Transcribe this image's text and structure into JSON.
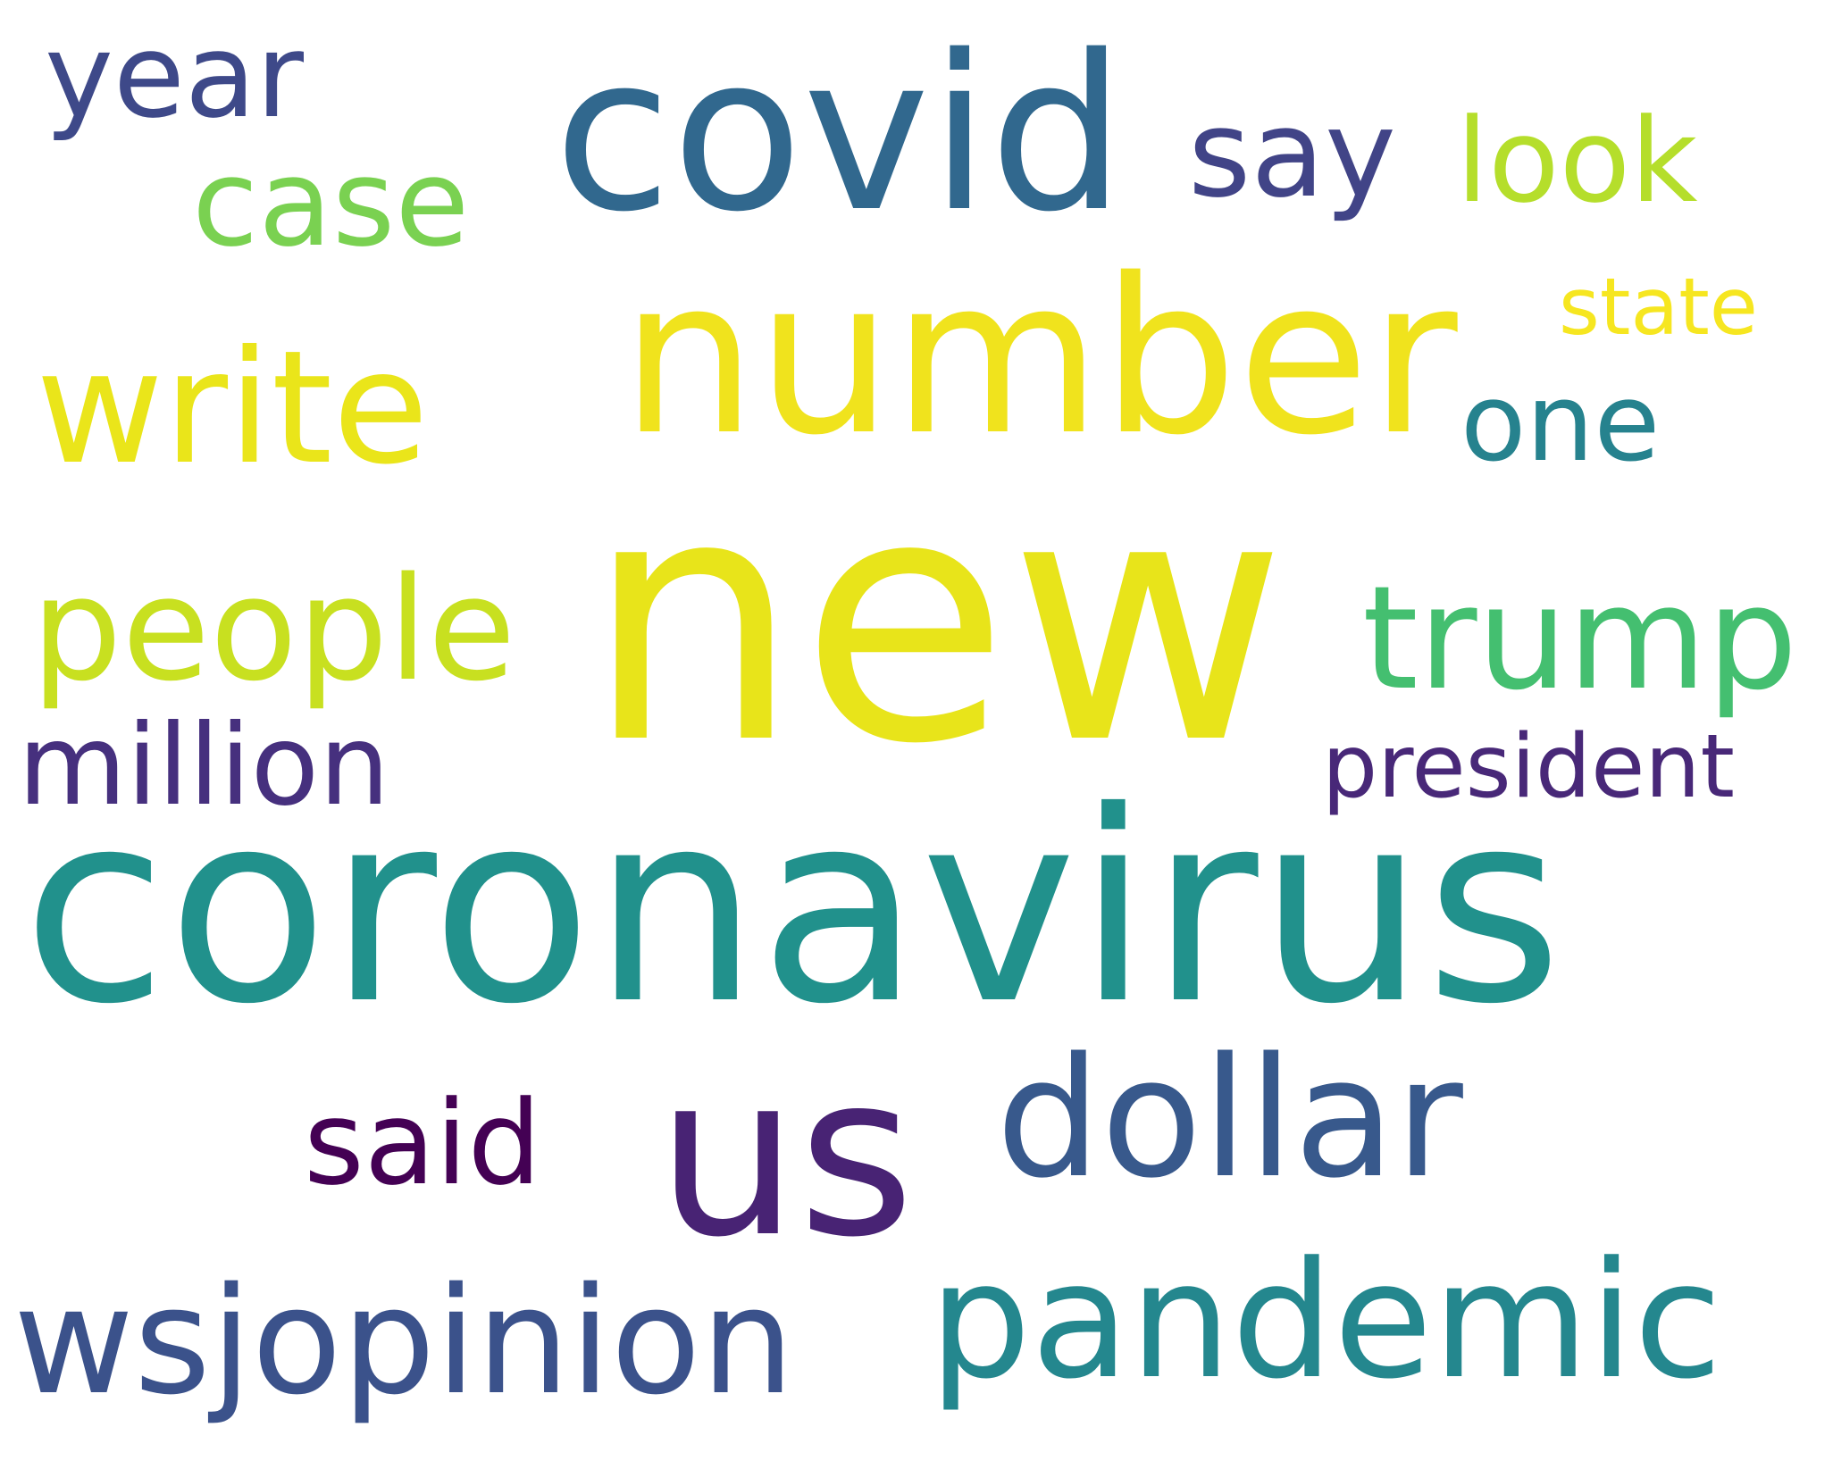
{
  "words": {
    "new": "new",
    "coronavirus": "coronavirus",
    "number": "number",
    "covid": "covid",
    "us": "us",
    "dollar": "dollar",
    "pandemic": "pandemic",
    "wsjopinion": "wsjopinion",
    "write": "write",
    "people": "people",
    "trump": "trump",
    "million": "million",
    "said": "said",
    "case": "case",
    "say": "say",
    "look": "look",
    "year": "year",
    "one": "one",
    "state": "state",
    "president": "president"
  },
  "colors": {
    "background": "#ffffff",
    "new": "#e8e41a",
    "coronavirus": "#21918c",
    "number": "#f0e31d",
    "covid": "#31688e",
    "us": "#482374",
    "dollar": "#38598c",
    "pandemic": "#24878e",
    "wsjopinion": "#3b528b",
    "write": "#eae51a",
    "people": "#c8e020",
    "trump": "#44bf70",
    "million": "#46307e",
    "said": "#440154",
    "case": "#7ad151",
    "say": "#414487",
    "look": "#b5de2b",
    "year": "#3e4989",
    "one": "#26828e",
    "state": "#f6e620",
    "president": "#482878"
  }
}
